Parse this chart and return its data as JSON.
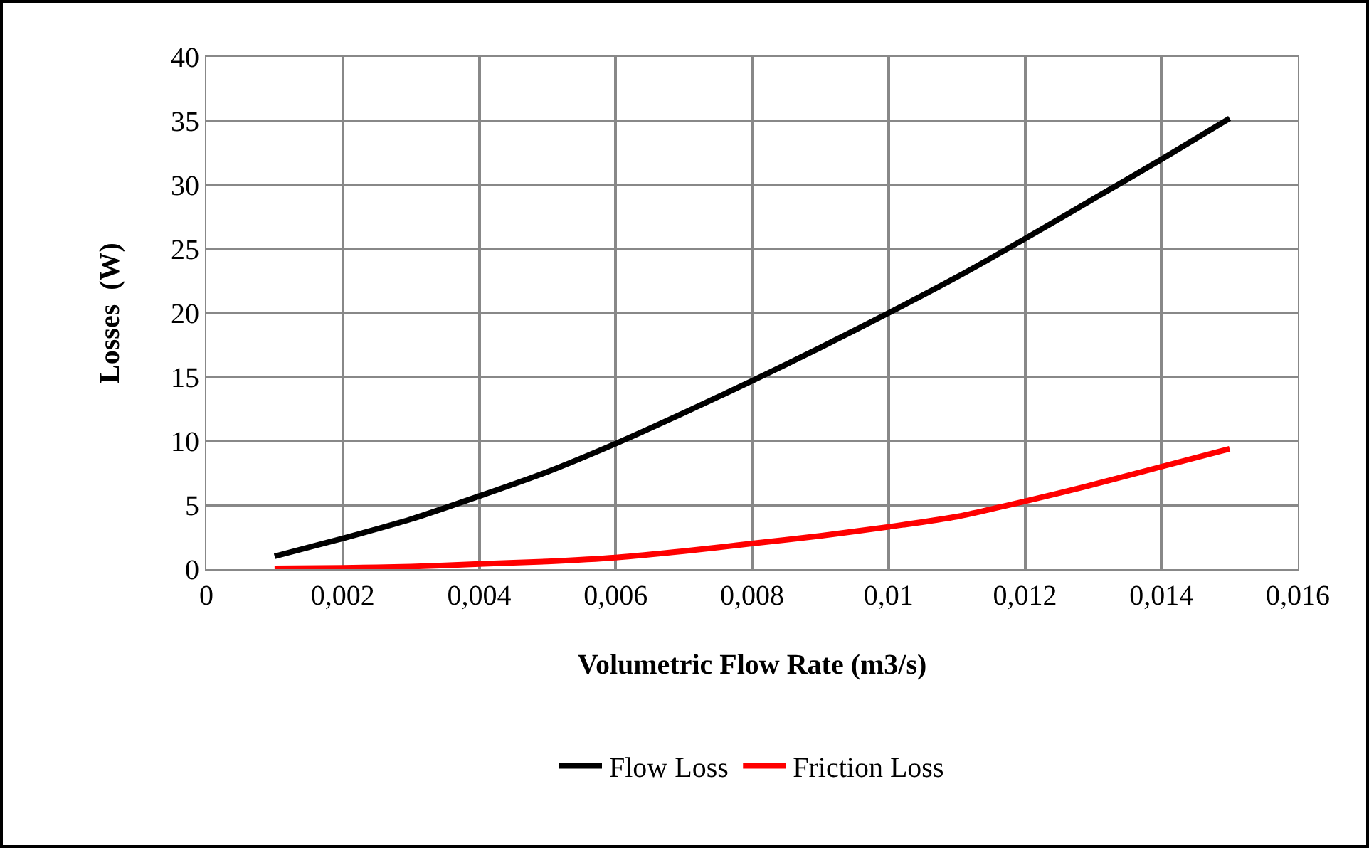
{
  "chart_data": {
    "type": "line",
    "xlabel": "Volumetric Flow Rate (m3/s)",
    "ylabel": "Losses  (W)",
    "x": [
      0.001,
      0.002,
      0.003,
      0.004,
      0.005,
      0.006,
      0.007,
      0.008,
      0.009,
      0.01,
      0.011,
      0.012,
      0.013,
      0.014,
      0.015
    ],
    "series": [
      {
        "name": "Flow Loss",
        "color": "#000000",
        "values": [
          1,
          2.4,
          3.9,
          5.7,
          7.6,
          9.8,
          12.2,
          14.7,
          17.3,
          20,
          22.8,
          25.8,
          28.9,
          32,
          35.2
        ]
      },
      {
        "name": "Friction Loss",
        "color": "#ff0000",
        "values": [
          0.05,
          0.1,
          0.2,
          0.4,
          0.6,
          0.9,
          1.4,
          2,
          2.6,
          3.3,
          4.1,
          5.3,
          6.6,
          8,
          9.4
        ]
      }
    ],
    "xlim": [
      0,
      0.016
    ],
    "xticks": [
      0,
      {
        "value": 0.002,
        "label": "0,002"
      },
      {
        "value": 0.004,
        "label": "0,004"
      },
      {
        "value": 0.006,
        "label": "0,006"
      },
      {
        "value": 0.008,
        "label": "0,008"
      },
      {
        "value": 0.01,
        "label": "0,01"
      },
      {
        "value": 0.012,
        "label": "0,012"
      },
      {
        "value": 0.014,
        "label": "0,014"
      },
      {
        "value": 0.016,
        "label": "0,016"
      }
    ],
    "ylim": [
      0,
      40
    ],
    "yticks": [
      0,
      5,
      10,
      15,
      20,
      25,
      30,
      35,
      40
    ],
    "grid": true,
    "legend": "bottom",
    "marker": "none",
    "line_style": "solid"
  }
}
